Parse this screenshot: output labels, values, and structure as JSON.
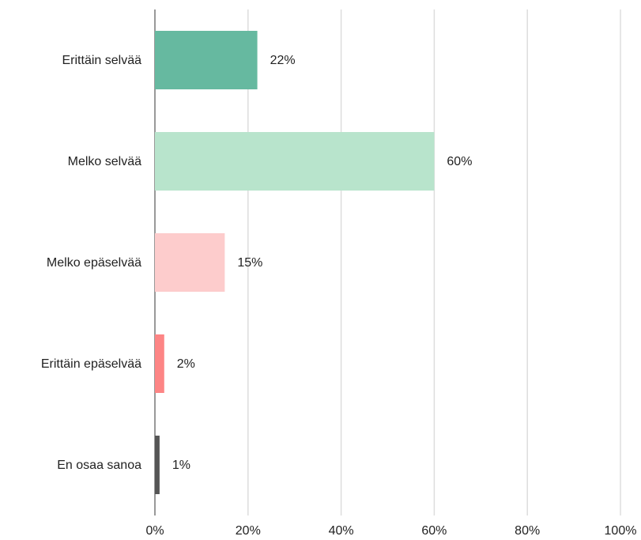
{
  "chart_data": {
    "type": "bar",
    "orientation": "horizontal",
    "categories": [
      "Erittäin selvää",
      "Melko selvää",
      "Melko epäselvää",
      "Erittäin epäselvää",
      "En osaa sanoa"
    ],
    "values": [
      22,
      60,
      15,
      2,
      1
    ],
    "value_labels": [
      "22%",
      "60%",
      "15%",
      "2%",
      "1%"
    ],
    "colors": [
      "#66b9a0",
      "#b8e4cc",
      "#fdcccc",
      "#fd8585",
      "#555555"
    ],
    "xlim": [
      0,
      100
    ],
    "xticks": [
      {
        "value": 0,
        "label": "0%"
      },
      {
        "value": 20,
        "label": "20%"
      },
      {
        "value": 40,
        "label": "40%"
      },
      {
        "value": 60,
        "label": "60%"
      },
      {
        "value": 80,
        "label": "80%"
      },
      {
        "value": 100,
        "label": "100%"
      }
    ],
    "grid": true
  }
}
